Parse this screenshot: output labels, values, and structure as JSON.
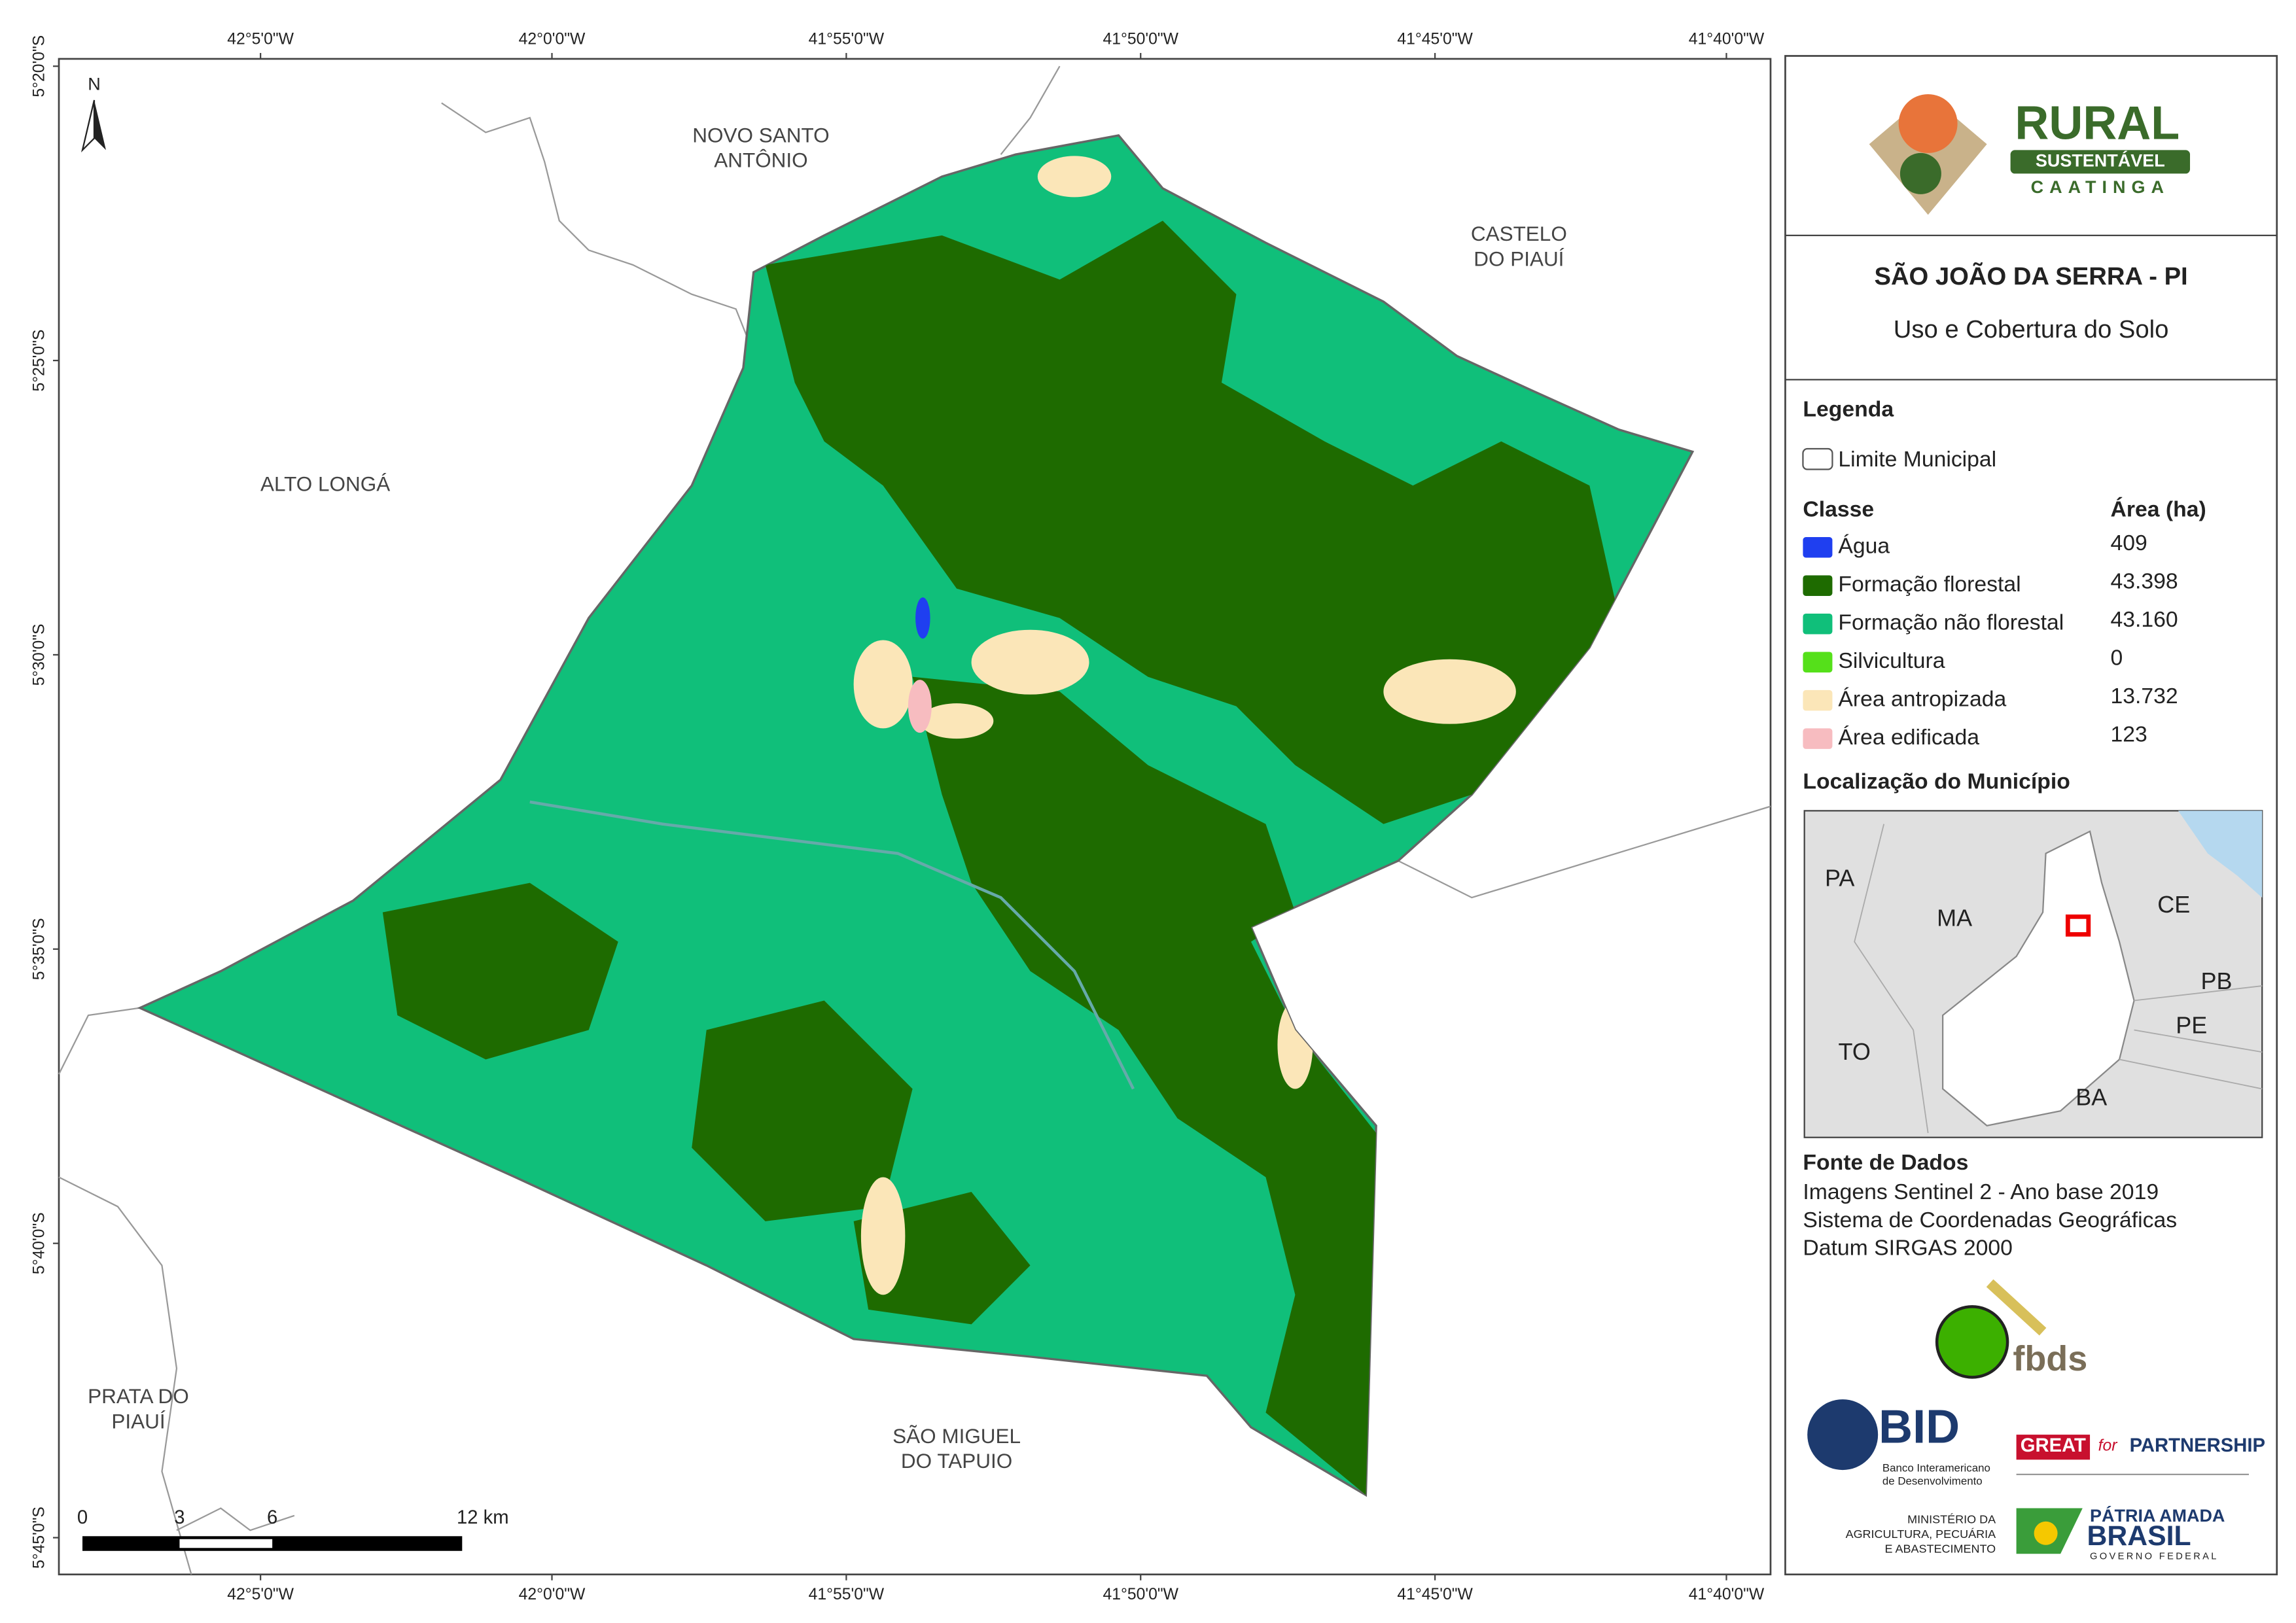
{
  "map": {
    "north": "N",
    "coords_top": [
      "42°5'0\"W",
      "42°0'0\"W",
      "41°55'0\"W",
      "41°50'0\"W",
      "41°45'0\"W",
      "41°40'0\"W"
    ],
    "coords_bottom": [
      "42°5'0\"W",
      "42°0'0\"W",
      "41°55'0\"W",
      "41°50'0\"W",
      "41°45'0\"W",
      "41°40'0\"W"
    ],
    "coords_left": [
      "5°20'0\"S",
      "5°25'0\"S",
      "5°30'0\"S",
      "5°35'0\"S",
      "5°40'0\"S",
      "5°45'0\"S"
    ],
    "places": [
      {
        "lines": [
          "NOVO SANTO",
          "ANTÔNIO"
        ]
      },
      {
        "lines": [
          "CASTELO",
          "DO PIAUÍ"
        ]
      },
      {
        "lines": [
          "ALTO LONGÁ"
        ]
      },
      {
        "lines": [
          "PRATA DO",
          "PIAUÍ"
        ]
      },
      {
        "lines": [
          "SÃO MIGUEL",
          "DO TAPUIO"
        ]
      }
    ],
    "scale_bar": [
      "0",
      "3",
      "6",
      "12 km"
    ]
  },
  "panel": {
    "logo": {
      "rural": "RURAL",
      "sustentavel": "SUSTENTÁVEL",
      "caatinga": "CAATINGA"
    },
    "title": "SÃO JOÃO DA SERRA - PI",
    "subtitle": "Uso e Cobertura do Solo",
    "legend": {
      "heading": "Legenda",
      "boundary": "Limite Municipal",
      "class_header": "Classe",
      "area_header": "Área (ha)",
      "classes": [
        {
          "name": "Água",
          "area": "409",
          "color": "#1f3ff0"
        },
        {
          "name": "Formação florestal",
          "area": "43.398",
          "color": "#1e6b00"
        },
        {
          "name": "Formação não florestal",
          "area": "43.160",
          "color": "#10bf7a"
        },
        {
          "name": "Silvicultura",
          "area": "0",
          "color": "#55e01a"
        },
        {
          "name": "Área antropizada",
          "area": "13.732",
          "color": "#fbe6b8"
        },
        {
          "name": "Área edificada",
          "area": "123",
          "color": "#f7bcc0"
        }
      ]
    },
    "location": {
      "heading": "Localização do Município",
      "states": [
        "PA",
        "MA",
        "CE",
        "PB",
        "PE",
        "TO",
        "BA"
      ]
    },
    "sources": {
      "heading": "Fonte de Dados",
      "lines": [
        "Imagens Sentinel 2 - Ano base 2019",
        "Sistema de Coordenadas Geográficas",
        "Datum SIRGAS 2000"
      ]
    },
    "logos": {
      "fbds": "fbds",
      "bid": "BID",
      "bid_name": [
        "Banco Interamericano",
        "de Desenvolvimento"
      ],
      "great": "GREAT",
      "for": "for",
      "partnership": "PARTNERSHIP",
      "ministry": [
        "MINISTÉRIO DA",
        "AGRICULTURA, PECUÁRIA",
        "E ABASTECIMENTO"
      ],
      "patria": "PÁTRIA AMADA",
      "brasil": "BRASIL",
      "governo": "GOVERNO FEDERAL"
    }
  }
}
